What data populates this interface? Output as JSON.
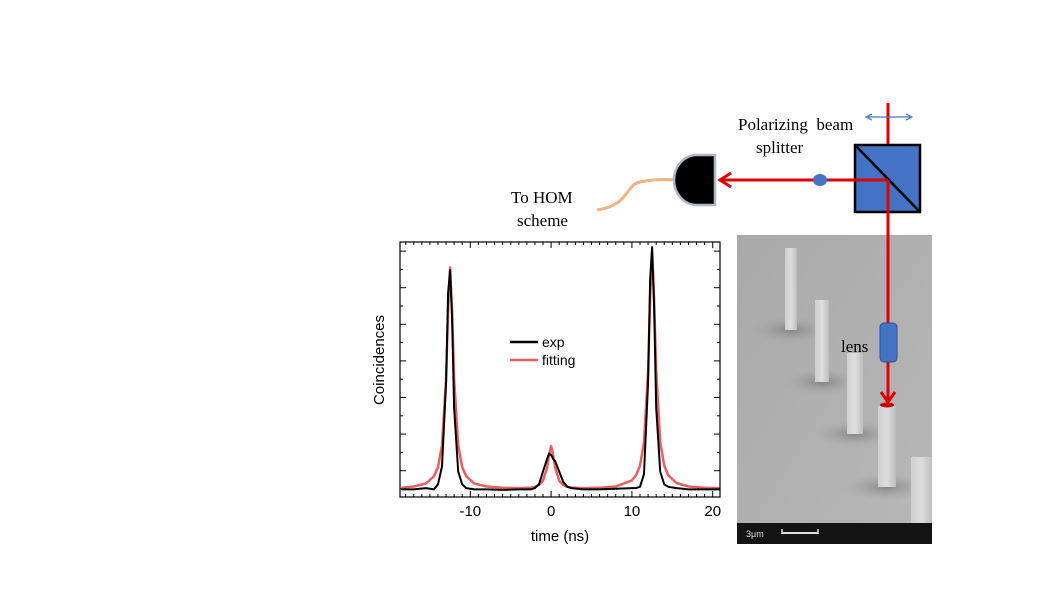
{
  "diagram": {
    "pbs_label_line1": "Polarizing  beam",
    "pbs_label_line2": "splitter",
    "hom_label_line1": "To HOM",
    "hom_label_line2": "scheme",
    "lens_label": "lens",
    "scale_bar_label": "3μm",
    "colors": {
      "beam": "#e00000",
      "optics": "#4472c4",
      "fiber": "#f4b183",
      "polarization_arrow": "#4472c4"
    }
  },
  "chart_data": {
    "type": "line",
    "title": "",
    "xlabel": "time (ns)",
    "ylabel": "Coincidences",
    "xlim": [
      -18.7,
      20.9
    ],
    "ylim": [
      0,
      1
    ],
    "x_ticks": [
      -10,
      0,
      10,
      20
    ],
    "x_tick_labels": [
      "-10",
      "0",
      "10",
      "20"
    ],
    "y_tick_labels": [],
    "grid": false,
    "legend_position": "center",
    "x": [
      -18.5,
      -17,
      -15.5,
      -14.5,
      -14,
      -13.5,
      -13,
      -12.75,
      -12.5,
      -12.25,
      -12,
      -11.5,
      -11,
      -10.5,
      -9.5,
      -8,
      -6,
      -4,
      -2.5,
      -2,
      -1.5,
      -1,
      -0.5,
      -0.25,
      0,
      0.25,
      0.5,
      1,
      1.5,
      2,
      2.5,
      4,
      6,
      8,
      10,
      10.5,
      11,
      11.5,
      12,
      12.25,
      12.5,
      12.75,
      13,
      13.5,
      14,
      14.5,
      15.5,
      17,
      19,
      20.9
    ],
    "series": [
      {
        "name": "exp",
        "color": "#000000",
        "values": [
          0.03,
          0.03,
          0.035,
          0.03,
          0.05,
          0.12,
          0.45,
          0.8,
          0.89,
          0.7,
          0.35,
          0.1,
          0.05,
          0.035,
          0.03,
          0.03,
          0.028,
          0.03,
          0.03,
          0.035,
          0.05,
          0.1,
          0.15,
          0.17,
          0.165,
          0.15,
          0.14,
          0.1,
          0.06,
          0.04,
          0.035,
          0.03,
          0.03,
          0.032,
          0.035,
          0.035,
          0.04,
          0.09,
          0.45,
          0.85,
          0.98,
          0.75,
          0.35,
          0.1,
          0.05,
          0.04,
          0.035,
          0.03,
          0.03,
          0.03
        ]
      },
      {
        "name": "fitting",
        "color": "#e8605f",
        "values": [
          0.036,
          0.041,
          0.053,
          0.081,
          0.117,
          0.204,
          0.465,
          0.726,
          0.9,
          0.726,
          0.465,
          0.204,
          0.117,
          0.081,
          0.053,
          0.041,
          0.036,
          0.035,
          0.037,
          0.04,
          0.047,
          0.064,
          0.115,
          0.166,
          0.2,
          0.166,
          0.115,
          0.064,
          0.047,
          0.04,
          0.037,
          0.035,
          0.036,
          0.041,
          0.065,
          0.085,
          0.123,
          0.216,
          0.495,
          0.774,
          0.96,
          0.774,
          0.495,
          0.216,
          0.123,
          0.085,
          0.055,
          0.041,
          0.036,
          0.034
        ]
      }
    ]
  }
}
